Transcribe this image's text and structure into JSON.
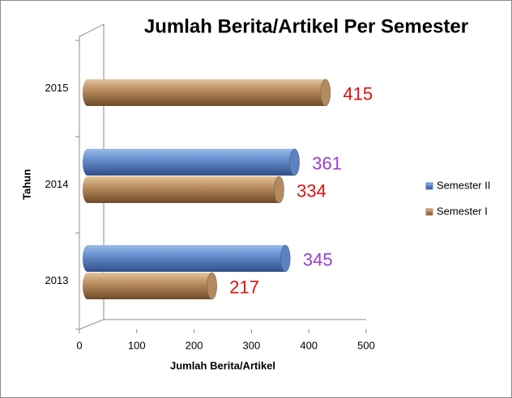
{
  "chart_data": {
    "type": "bar",
    "orientation": "horizontal",
    "title": "Jumlah Berita/Artikel Per Semester",
    "x_label": "Jumlah Berita/Artikel",
    "y_label": "Tahun",
    "categories": [
      "2013",
      "2014",
      "2015"
    ],
    "series": [
      {
        "name": "Semester II",
        "color": "#5a82c2",
        "label_color": "#9a3fd0",
        "values": [
          345,
          361,
          null
        ]
      },
      {
        "name": "Semester I",
        "color": "#b48a5c",
        "label_color": "#e01010",
        "values": [
          217,
          334,
          415
        ]
      }
    ],
    "xlim": [
      0,
      500
    ],
    "xticks": [
      0,
      100,
      200,
      300,
      400,
      500
    ],
    "legend": "right"
  }
}
